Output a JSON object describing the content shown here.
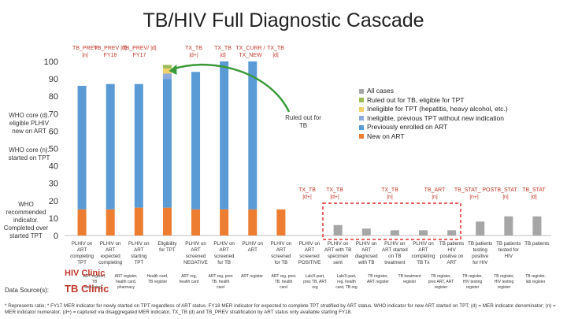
{
  "title": "TB/HIV Full Diagnostic Cascade",
  "side_notes": {
    "who_core_d": "WHO core (d). eligible PLHIV new on ART",
    "who_core_n": "WHO core (n). started on TPT",
    "who_recommended": "WHO recommended indicator. Completed over started TPT"
  },
  "top_indicators": [
    {
      "text": "TB_PREV |n|",
      "color": "#c0392b"
    },
    {
      "text": "TB_PREV |d| FY18",
      "color": "#c0392b"
    },
    {
      "text": "TB_PREV/ |d| FY17",
      "color": "#c0392b"
    },
    {
      "text": "TX_TB |d+|",
      "color": "#c0392b"
    },
    {
      "text": "TX_TB |d|",
      "color": "#c0392b"
    },
    {
      "text": "TX_CURR / TX_NEW",
      "color": "#c0392b"
    },
    {
      "text": "TX_TB |d|",
      "color": "#c0392b"
    }
  ],
  "mid_indicators": [
    {
      "text": "TX_TB |d+|",
      "color": "#c0392b"
    },
    {
      "text": "TX_TB |d+|",
      "color": "#c0392b"
    },
    {
      "text": "TX_TB |n|",
      "color": "#c0392b"
    },
    {
      "text": "TB_ART |n|",
      "color": "#c0392b"
    },
    {
      "text": "TB_STAT_ POS |n+|",
      "color": "#c0392b"
    },
    {
      "text": "TB_STAT |n|",
      "color": "#c0392b"
    },
    {
      "text": "TB_STAT |d|",
      "color": "#c0392b"
    }
  ],
  "ruled_out_note": "Ruled out for TB",
  "legend": [
    {
      "label": "All cases",
      "color": "#a6a6a6"
    },
    {
      "label": "Ruled out for TB, eligible for TPT",
      "color": "#9bbb59"
    },
    {
      "label": "Ineligible for TPT (hepatitis, heavy alcohol, etc.)",
      "color": "#f2d06b"
    },
    {
      "label": "Ineligible, previous TPT without new indication",
      "color": "#8faadc"
    },
    {
      "label": "Previously enrolled on ART",
      "color": "#5b9bd5"
    },
    {
      "label": "New on ART",
      "color": "#ed7d31"
    }
  ],
  "hiv_clinic_label": "HIV Clinic",
  "tb_clinic_label": "TB Clinic",
  "data_sources_label": "Data Source(s):",
  "data_sources": [
    "ART register, TB screening...",
    "ART register, health card, pharmacy register",
    "Health card, TB register",
    "ART reg, health card",
    "ART reg, pres TB, health card",
    "ART register",
    "ART reg, pres TB, health card",
    "Lab/X-part, pres TB, ART reg",
    "Lab/X-part, reg, health card, TB reg",
    "TB register, ART register",
    "TB treatment register",
    "TB register, pres ART, ART register",
    "TB register, HIV testing register",
    "TB register, HIV testing register",
    "TB register, lab register"
  ],
  "footnote": "* Represents ratio; * FY17 MER indicator for newly started on TPT regardless of ART status. FY18 MER indicator for expected to complete TPT stratified by ART status. WHO indicator for new ART started on TPT; (d) = MER indicator denominator; (n) = MER indicator numerator; (d+) = captured via disaggregated MER indicator, TX_TB (d) and TB_PREV stratification by ART status only available starting FY18.",
  "chart_data": {
    "type": "bar",
    "ylim": [
      0,
      100
    ],
    "yticks": [
      0,
      10,
      20,
      30,
      40,
      50,
      60,
      70,
      80,
      90,
      100
    ],
    "categories": [
      "PLHIV on ART completing TPT",
      "PLHIV on ART expected completing TPT",
      "PLHIV on ART starting TPT",
      "Eligibility for TPT",
      "PLHIV on ART screened NEGATIVE",
      "PLHIV on ART screened for TB",
      "PLHIV on ART",
      "PLHIV on ART screened for TB",
      "PLHIV on ART screened POSITIVE",
      "PLHIV on ART with TB specimen sent",
      "PLHIV on ART diagnosed with TB",
      "PLHIV on ART started on TB treatment",
      "PLHIV on ART completing TB Tx",
      "TB patients HIV positive on ART",
      "TB patients testing positive for HIV",
      "TB patients tested for HIV",
      "TB patients"
    ],
    "series": [
      {
        "name": "New on ART",
        "color": "#ed7d31",
        "values": [
          15,
          15,
          16,
          16,
          15,
          15,
          15,
          15,
          0,
          0,
          0,
          0,
          0,
          0,
          0,
          0,
          0
        ]
      },
      {
        "name": "Previously enrolled on ART",
        "color": "#5b9bd5",
        "values": [
          71,
          72,
          71,
          74,
          79,
          85,
          85,
          0,
          0,
          0,
          0,
          0,
          0,
          0,
          0,
          0,
          0
        ]
      },
      {
        "name": "Ineligible, previous TPT without new indication",
        "color": "#8faadc",
        "values": [
          0,
          0,
          0,
          3,
          0,
          0,
          0,
          0,
          0,
          0,
          0,
          0,
          0,
          0,
          0,
          0,
          0
        ]
      },
      {
        "name": "Ineligible for TPT (hepatitis, heavy alcohol, etc.)",
        "color": "#f2d06b",
        "values": [
          0,
          0,
          0,
          3,
          0,
          0,
          0,
          0,
          0,
          0,
          0,
          0,
          0,
          0,
          0,
          0,
          0
        ]
      },
      {
        "name": "Ruled out for TB, eligible for TPT",
        "color": "#9bbb59",
        "values": [
          0,
          0,
          0,
          2,
          0,
          0,
          0,
          0,
          0,
          0,
          0,
          0,
          0,
          0,
          0,
          0,
          0
        ]
      },
      {
        "name": "All cases",
        "color": "#a6a6a6",
        "values": [
          0,
          0,
          0,
          0,
          0,
          0,
          0,
          0,
          0,
          6,
          4,
          3,
          3,
          3,
          8,
          11,
          11
        ]
      }
    ],
    "annotations": {
      "highlight_box": "red dashed box around the TB follow-up bars",
      "arrow": "green arrow from the NEGATIVE screening bar up to the eligibility bar"
    }
  }
}
